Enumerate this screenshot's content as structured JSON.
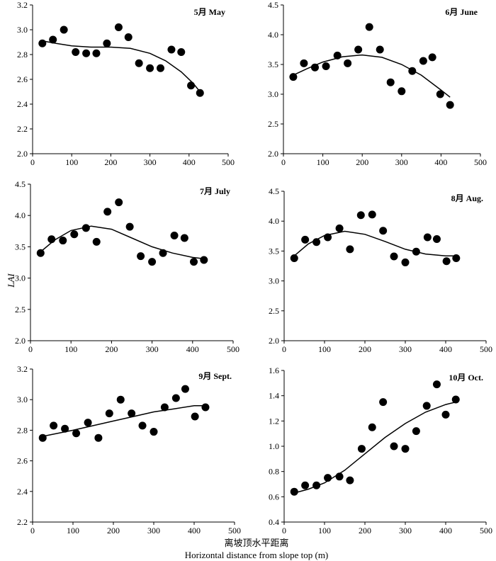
{
  "figure": {
    "ylabel": "LAI",
    "xlabel_cn": "离坡顶水平距离",
    "xlabel_en": "Horizontal distance from slope top (m)"
  },
  "chart_data": [
    {
      "type": "scatter",
      "title": "5月 May",
      "xlim": [
        0,
        500
      ],
      "ylim": [
        2.0,
        3.2
      ],
      "xticks": [
        0,
        100,
        200,
        300,
        400,
        500
      ],
      "yticks": [
        2.0,
        2.2,
        2.4,
        2.6,
        2.8,
        3.0,
        3.2
      ],
      "x": [
        25,
        52,
        80,
        110,
        137,
        163,
        190,
        220,
        245,
        272,
        300,
        327,
        355,
        380,
        405,
        428
      ],
      "y": [
        2.89,
        2.92,
        3.0,
        2.82,
        2.81,
        2.81,
        2.89,
        3.02,
        2.94,
        2.73,
        2.69,
        2.69,
        2.84,
        2.82,
        2.55,
        2.49
      ],
      "fit": {
        "x": [
          25,
          60,
          100,
          150,
          200,
          250,
          300,
          340,
          380,
          410,
          428
        ],
        "y": [
          2.91,
          2.89,
          2.87,
          2.86,
          2.86,
          2.85,
          2.81,
          2.75,
          2.66,
          2.57,
          2.5
        ]
      }
    },
    {
      "type": "scatter",
      "title": "6月 June",
      "xlim": [
        0,
        500
      ],
      "ylim": [
        2.0,
        4.5
      ],
      "xticks": [
        0,
        100,
        200,
        300,
        400,
        500
      ],
      "yticks": [
        2.0,
        2.5,
        3.0,
        3.5,
        4.0,
        4.5
      ],
      "x": [
        25,
        52,
        80,
        108,
        137,
        163,
        190,
        218,
        245,
        272,
        300,
        327,
        355,
        378,
        398,
        423
      ],
      "y": [
        3.29,
        3.52,
        3.45,
        3.47,
        3.65,
        3.52,
        3.75,
        4.13,
        3.75,
        3.2,
        3.05,
        3.39,
        3.56,
        3.62,
        3.0,
        2.82
      ],
      "fit": {
        "x": [
          25,
          60,
          100,
          150,
          200,
          250,
          300,
          350,
          400,
          423
        ],
        "y": [
          3.32,
          3.43,
          3.54,
          3.63,
          3.66,
          3.62,
          3.5,
          3.32,
          3.07,
          2.95
        ]
      }
    },
    {
      "type": "scatter",
      "title": "7月 July",
      "xlim": [
        0,
        500
      ],
      "ylim": [
        2.0,
        4.5
      ],
      "xticks": [
        0,
        100,
        200,
        300,
        400,
        500
      ],
      "yticks": [
        2.0,
        2.5,
        3.0,
        3.5,
        4.0,
        4.5
      ],
      "x": [
        25,
        52,
        80,
        108,
        137,
        163,
        190,
        218,
        245,
        272,
        300,
        327,
        355,
        380,
        403,
        428
      ],
      "y": [
        3.4,
        3.62,
        3.6,
        3.7,
        3.8,
        3.58,
        4.06,
        4.21,
        3.82,
        3.35,
        3.26,
        3.4,
        3.68,
        3.64,
        3.26,
        3.29
      ],
      "fit": {
        "x": [
          25,
          60,
          100,
          150,
          200,
          250,
          300,
          350,
          400,
          428
        ],
        "y": [
          3.42,
          3.61,
          3.76,
          3.83,
          3.78,
          3.64,
          3.5,
          3.4,
          3.33,
          3.31
        ]
      }
    },
    {
      "type": "scatter",
      "title": "8月 Aug.",
      "xlim": [
        0,
        500
      ],
      "ylim": [
        2.0,
        4.5
      ],
      "xticks": [
        0,
        100,
        200,
        300,
        400,
        500
      ],
      "yticks": [
        2.0,
        2.5,
        3.0,
        3.5,
        4.0,
        4.5
      ],
      "x": [
        25,
        52,
        80,
        108,
        137,
        163,
        190,
        218,
        245,
        272,
        300,
        327,
        355,
        378,
        402,
        426
      ],
      "y": [
        3.38,
        3.69,
        3.65,
        3.73,
        3.88,
        3.53,
        4.1,
        4.11,
        3.84,
        3.41,
        3.31,
        3.49,
        3.73,
        3.7,
        3.33,
        3.38
      ],
      "fit": {
        "x": [
          25,
          60,
          100,
          150,
          200,
          250,
          300,
          350,
          400,
          426
        ],
        "y": [
          3.42,
          3.62,
          3.76,
          3.83,
          3.78,
          3.66,
          3.53,
          3.45,
          3.42,
          3.42
        ]
      }
    },
    {
      "type": "scatter",
      "title": "9月 Sept.",
      "xlim": [
        0,
        500
      ],
      "ylim": [
        2.2,
        3.2
      ],
      "xticks": [
        0,
        100,
        200,
        300,
        400,
        500
      ],
      "yticks": [
        2.2,
        2.4,
        2.6,
        2.8,
        3.0,
        3.2
      ],
      "x": [
        25,
        52,
        80,
        108,
        137,
        163,
        190,
        218,
        245,
        272,
        300,
        327,
        355,
        378,
        402,
        428
      ],
      "y": [
        2.75,
        2.83,
        2.81,
        2.78,
        2.85,
        2.75,
        2.91,
        3.0,
        2.91,
        2.83,
        2.79,
        2.95,
        3.01,
        3.07,
        2.89,
        2.95
      ],
      "fit": {
        "x": [
          25,
          100,
          150,
          200,
          250,
          300,
          350,
          400,
          428
        ],
        "y": [
          2.76,
          2.8,
          2.83,
          2.86,
          2.89,
          2.92,
          2.94,
          2.96,
          2.96
        ]
      }
    },
    {
      "type": "scatter",
      "title": "10月 Oct.",
      "xlim": [
        0,
        500
      ],
      "ylim": [
        0.4,
        1.6
      ],
      "xticks": [
        0,
        100,
        200,
        300,
        400,
        500
      ],
      "yticks": [
        0.4,
        0.6,
        0.8,
        1.0,
        1.2,
        1.4,
        1.6
      ],
      "x": [
        25,
        52,
        80,
        108,
        137,
        163,
        192,
        218,
        245,
        272,
        300,
        327,
        353,
        378,
        400,
        425
      ],
      "y": [
        0.64,
        0.69,
        0.69,
        0.75,
        0.76,
        0.73,
        0.98,
        1.15,
        1.35,
        1.0,
        0.98,
        1.12,
        1.32,
        1.49,
        1.25,
        1.37
      ],
      "fit": {
        "x": [
          25,
          60,
          100,
          150,
          200,
          250,
          300,
          350,
          400,
          425
        ],
        "y": [
          0.63,
          0.66,
          0.71,
          0.81,
          0.94,
          1.07,
          1.18,
          1.27,
          1.33,
          1.35
        ]
      }
    }
  ]
}
